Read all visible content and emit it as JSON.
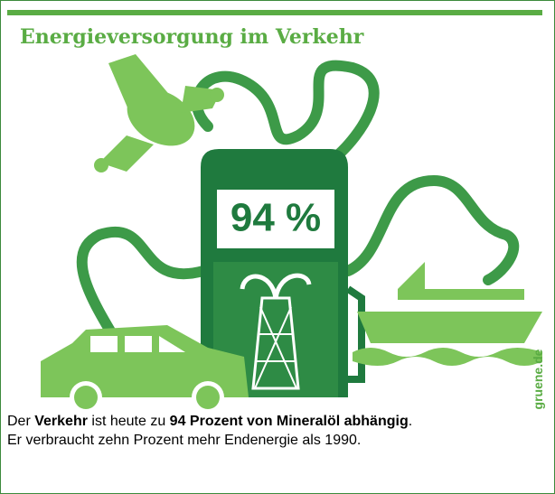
{
  "infographic": {
    "title": "Energieversorgung im Verkehr",
    "percentage": "94 %",
    "source": "gruene.de"
  },
  "caption": {
    "line1": [
      "Der ",
      "Verkehr",
      " ist heute zu ",
      "94 Prozent von Mineralöl abhängig",
      "."
    ],
    "line2": "Er verbraucht zehn Prozent mehr Endenergie als 1990."
  }
}
